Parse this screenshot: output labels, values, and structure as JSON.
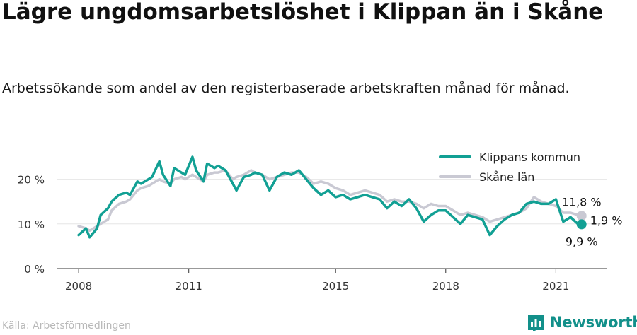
{
  "title": "Lägre ungdomsarbetslöshet i Klippan än i Skåne",
  "subtitle": "Arbetssökande som andel av den registerbaserade arbetskraften månad för månad.",
  "source": "Källa: Arbetsförmedlingen",
  "brand": {
    "name": "Newsworthy",
    "icon": "newsworthy-logo-icon",
    "color": "#12908a"
  },
  "chart_data": {
    "type": "line",
    "title": "Lägre ungdomsarbetslöshet i Klippan än i Skåne",
    "subtitle": "Arbetssökande som andel av den registerbaserade arbetskraften månad för månad.",
    "xlabel": "",
    "ylabel": "",
    "xlim": [
      2007.4,
      2022.4
    ],
    "ylim": [
      0,
      25
    ],
    "x_ticks": [
      2008,
      2011,
      2015,
      2018,
      2021
    ],
    "x_tick_labels": [
      "2008",
      "2011",
      "2015",
      "2018",
      "2021"
    ],
    "y_ticks": [
      0,
      10,
      20
    ],
    "y_tick_labels": [
      "0 %",
      "10 %",
      "20 %"
    ],
    "grid": "horizontal",
    "legend": "top-right",
    "annotations": [
      "11,8 %",
      "1,9 %",
      "9,9 %"
    ],
    "series": [
      {
        "name": "Klippans kommun",
        "color": "#12a094",
        "x": [
          2008.0,
          2008.2,
          2008.3,
          2008.5,
          2008.6,
          2008.8,
          2008.9,
          2009.1,
          2009.3,
          2009.4,
          2009.6,
          2009.7,
          2009.9,
          2010.0,
          2010.2,
          2010.3,
          2010.5,
          2010.6,
          2010.8,
          2010.9,
          2011.1,
          2011.2,
          2011.4,
          2011.5,
          2011.7,
          2011.8,
          2012.0,
          2012.2,
          2012.3,
          2012.5,
          2012.7,
          2012.8,
          2013.0,
          2013.2,
          2013.4,
          2013.6,
          2013.8,
          2014.0,
          2014.2,
          2014.4,
          2014.6,
          2014.8,
          2015.0,
          2015.2,
          2015.4,
          2015.6,
          2015.8,
          2016.0,
          2016.2,
          2016.4,
          2016.6,
          2016.8,
          2017.0,
          2017.2,
          2017.4,
          2017.6,
          2017.8,
          2018.0,
          2018.2,
          2018.4,
          2018.6,
          2018.8,
          2019.0,
          2019.2,
          2019.4,
          2019.6,
          2019.8,
          2020.0,
          2020.2,
          2020.4,
          2020.6,
          2020.8,
          2021.0,
          2021.2,
          2021.4,
          2021.6,
          2021.7
        ],
        "values": [
          7.5,
          9.0,
          7.0,
          9.0,
          12.0,
          13.5,
          15.0,
          16.5,
          17.0,
          16.5,
          19.5,
          19.0,
          20.0,
          20.5,
          24.0,
          21.0,
          18.5,
          22.5,
          21.5,
          21.0,
          25.0,
          22.0,
          19.5,
          23.5,
          22.5,
          23.0,
          22.0,
          19.0,
          17.5,
          20.5,
          21.0,
          21.5,
          21.0,
          17.5,
          20.5,
          21.5,
          21.0,
          22.0,
          20.0,
          18.0,
          16.5,
          17.5,
          16.0,
          16.5,
          15.5,
          16.0,
          16.5,
          16.0,
          15.5,
          13.5,
          15.0,
          14.0,
          15.5,
          13.5,
          10.5,
          12.0,
          13.0,
          13.0,
          11.5,
          10.0,
          12.0,
          11.5,
          11.0,
          7.5,
          9.5,
          11.0,
          12.0,
          12.5,
          14.5,
          15.0,
          14.5,
          14.5,
          15.5,
          10.5,
          11.5,
          10.0,
          9.9
        ]
      },
      {
        "name": "Skåne län",
        "color": "#c9c9d3",
        "x": [
          2008.0,
          2008.2,
          2008.3,
          2008.5,
          2008.6,
          2008.8,
          2008.9,
          2009.1,
          2009.3,
          2009.4,
          2009.6,
          2009.7,
          2009.9,
          2010.0,
          2010.2,
          2010.3,
          2010.5,
          2010.6,
          2010.8,
          2010.9,
          2011.1,
          2011.2,
          2011.4,
          2011.5,
          2011.7,
          2011.8,
          2012.0,
          2012.2,
          2012.3,
          2012.5,
          2012.7,
          2012.8,
          2013.0,
          2013.2,
          2013.4,
          2013.6,
          2013.8,
          2014.0,
          2014.2,
          2014.4,
          2014.6,
          2014.8,
          2015.0,
          2015.2,
          2015.4,
          2015.6,
          2015.8,
          2016.0,
          2016.2,
          2016.4,
          2016.6,
          2016.8,
          2017.0,
          2017.2,
          2017.4,
          2017.6,
          2017.8,
          2018.0,
          2018.2,
          2018.4,
          2018.6,
          2018.8,
          2019.0,
          2019.2,
          2019.4,
          2019.6,
          2019.8,
          2020.0,
          2020.2,
          2020.4,
          2020.6,
          2020.8,
          2021.0,
          2021.2,
          2021.4,
          2021.6,
          2021.7
        ],
        "values": [
          9.5,
          9.0,
          8.5,
          9.5,
          10.0,
          11.0,
          13.0,
          14.5,
          15.0,
          15.5,
          17.5,
          18.0,
          18.5,
          19.0,
          20.0,
          19.5,
          19.0,
          20.0,
          20.5,
          20.0,
          21.0,
          20.5,
          19.5,
          21.0,
          21.5,
          21.5,
          22.0,
          20.0,
          20.5,
          21.0,
          22.0,
          21.5,
          21.0,
          20.0,
          20.5,
          21.0,
          21.5,
          21.5,
          20.5,
          19.0,
          19.5,
          19.0,
          18.0,
          17.5,
          16.5,
          17.0,
          17.5,
          17.0,
          16.5,
          15.0,
          15.5,
          15.0,
          15.0,
          14.5,
          13.5,
          14.5,
          14.0,
          14.0,
          13.0,
          12.0,
          12.5,
          12.0,
          11.5,
          10.5,
          11.0,
          11.5,
          12.0,
          12.5,
          13.5,
          16.0,
          15.0,
          14.5,
          14.0,
          12.5,
          12.5,
          12.0,
          11.8
        ]
      }
    ]
  }
}
